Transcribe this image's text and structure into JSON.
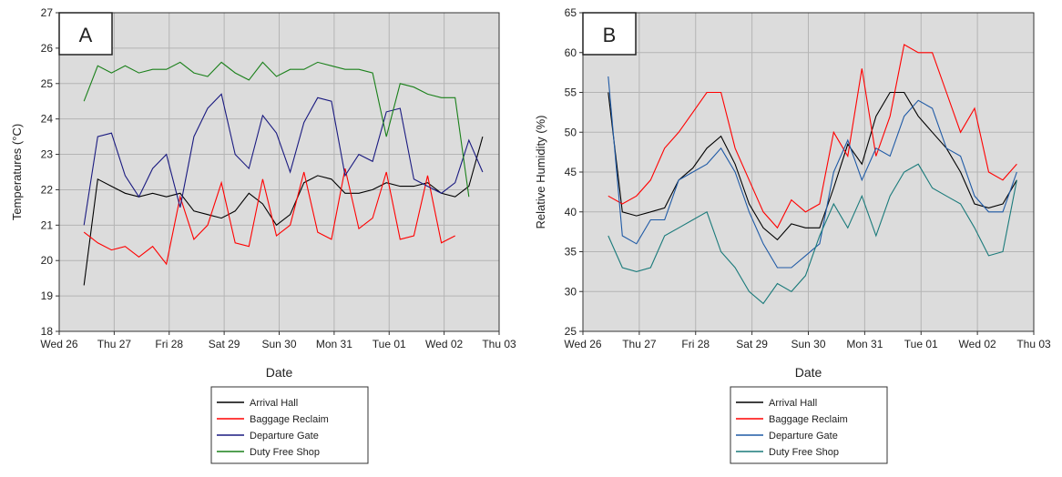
{
  "chart_data": [
    {
      "type": "line",
      "label": "A",
      "ylabel": "Temperatures (°C)",
      "xlabel": "Date",
      "grid": true,
      "xlim": [
        0,
        8
      ],
      "ylim": [
        18,
        27
      ],
      "xticks": [
        {
          "value": 0,
          "label": "Wed 26"
        },
        {
          "value": 1,
          "label": "Thu 27"
        },
        {
          "value": 2,
          "label": "Fri 28"
        },
        {
          "value": 3,
          "label": "Sat 29"
        },
        {
          "value": 4,
          "label": "Sun 30"
        },
        {
          "value": 5,
          "label": "Mon 31"
        },
        {
          "value": 6,
          "label": "Tue 01"
        },
        {
          "value": 7,
          "label": "Wed 02"
        },
        {
          "value": 8,
          "label": "Thu 03"
        }
      ],
      "yticks": [
        18,
        19,
        20,
        21,
        22,
        23,
        24,
        25,
        26,
        27
      ],
      "x": [
        0.45,
        0.7,
        0.95,
        1.2,
        1.45,
        1.7,
        1.95,
        2.2,
        2.45,
        2.7,
        2.95,
        3.2,
        3.45,
        3.7,
        3.95,
        4.2,
        4.45,
        4.7,
        4.95,
        5.2,
        5.45,
        5.7,
        5.95,
        6.2,
        6.45,
        6.7,
        6.95,
        7.2,
        7.45,
        7.7
      ],
      "series": [
        {
          "name": "Arrival Hall",
          "color": "#000000",
          "values": [
            19.3,
            22.3,
            22.1,
            21.9,
            21.8,
            21.9,
            21.8,
            21.9,
            21.4,
            21.3,
            21.2,
            21.4,
            21.9,
            21.6,
            21.0,
            21.3,
            22.2,
            22.4,
            22.3,
            21.9,
            21.9,
            22.0,
            22.2,
            22.1,
            22.1,
            22.2,
            21.9,
            21.8,
            22.1,
            23.5
          ]
        },
        {
          "name": "Baggage Reclaim",
          "color": "#ff0000",
          "values": [
            20.8,
            20.5,
            20.3,
            20.4,
            20.1,
            20.4,
            19.9,
            21.8,
            20.6,
            21.0,
            22.2,
            20.5,
            20.4,
            22.3,
            20.7,
            21.0,
            22.5,
            20.8,
            20.6,
            22.6,
            20.9,
            21.2,
            22.5,
            20.6,
            20.7,
            22.4,
            20.5,
            20.7,
            null,
            null
          ]
        },
        {
          "name": "Departure Gate",
          "color": "#1a1a80",
          "values": [
            21.0,
            23.5,
            23.6,
            22.4,
            21.8,
            22.6,
            23.0,
            21.5,
            23.5,
            24.3,
            24.7,
            23.0,
            22.6,
            24.1,
            23.6,
            22.5,
            23.9,
            24.6,
            24.5,
            22.4,
            23.0,
            22.8,
            24.2,
            24.3,
            22.3,
            22.1,
            21.9,
            22.2,
            23.4,
            22.5
          ]
        },
        {
          "name": "Duty Free Shop",
          "color": "#1a801a",
          "values": [
            24.5,
            25.5,
            25.3,
            25.5,
            25.3,
            25.4,
            25.4,
            25.6,
            25.3,
            25.2,
            25.6,
            25.3,
            25.1,
            25.6,
            25.2,
            25.4,
            25.4,
            25.6,
            25.5,
            25.4,
            25.4,
            25.3,
            23.5,
            25.0,
            24.9,
            24.7,
            24.6,
            24.6,
            21.8,
            null
          ]
        }
      ]
    },
    {
      "type": "line",
      "label": "B",
      "ylabel": "Relative Humidity (%)",
      "xlabel": "Date",
      "grid": true,
      "xlim": [
        0,
        8
      ],
      "ylim": [
        25,
        65
      ],
      "xticks": [
        {
          "value": 0,
          "label": "Wed 26"
        },
        {
          "value": 1,
          "label": "Thu 27"
        },
        {
          "value": 2,
          "label": "Fri 28"
        },
        {
          "value": 3,
          "label": "Sat 29"
        },
        {
          "value": 4,
          "label": "Sun 30"
        },
        {
          "value": 5,
          "label": "Mon 31"
        },
        {
          "value": 6,
          "label": "Tue 01"
        },
        {
          "value": 7,
          "label": "Wed 02"
        },
        {
          "value": 8,
          "label": "Thu 03"
        }
      ],
      "yticks": [
        25,
        30,
        35,
        40,
        45,
        50,
        55,
        60,
        65
      ],
      "x": [
        0.45,
        0.7,
        0.95,
        1.2,
        1.45,
        1.7,
        1.95,
        2.2,
        2.45,
        2.7,
        2.95,
        3.2,
        3.45,
        3.7,
        3.95,
        4.2,
        4.45,
        4.7,
        4.95,
        5.2,
        5.45,
        5.7,
        5.95,
        6.2,
        6.45,
        6.7,
        6.95,
        7.2,
        7.45,
        7.7
      ],
      "series": [
        {
          "name": "Arrival Hall",
          "color": "#000000",
          "values": [
            55,
            40,
            39.5,
            40,
            40.5,
            44,
            45.5,
            48,
            49.5,
            46,
            41,
            38,
            36.5,
            38.5,
            38,
            38,
            43,
            48.5,
            46,
            52,
            55,
            55,
            52,
            50,
            48,
            45,
            41,
            40.5,
            41,
            44
          ]
        },
        {
          "name": "Baggage Reclaim",
          "color": "#ff0000",
          "values": [
            42,
            41,
            42,
            44,
            48,
            50,
            52.5,
            55,
            55,
            48,
            44,
            40,
            38,
            41.5,
            40,
            41,
            50,
            47,
            58,
            47,
            52,
            61,
            60,
            60,
            55,
            50,
            53,
            45,
            44,
            46
          ]
        },
        {
          "name": "Departure Gate",
          "color": "#1f5aa6",
          "values": [
            57,
            37,
            36,
            39,
            39,
            44,
            45,
            46,
            48,
            45,
            40,
            36,
            33,
            33,
            34.5,
            36,
            45,
            49,
            44,
            48,
            47,
            52,
            54,
            53,
            48,
            47,
            42,
            40,
            40,
            45
          ]
        },
        {
          "name": "Duty Free Shop",
          "color": "#1a7a7a",
          "values": [
            37,
            33,
            32.5,
            33,
            37,
            38,
            39,
            40,
            35,
            33,
            30,
            28.5,
            31,
            30,
            32,
            37,
            41,
            38,
            42,
            37,
            42,
            45,
            46,
            43,
            42,
            41,
            38,
            34.5,
            35,
            44
          ]
        }
      ]
    }
  ]
}
